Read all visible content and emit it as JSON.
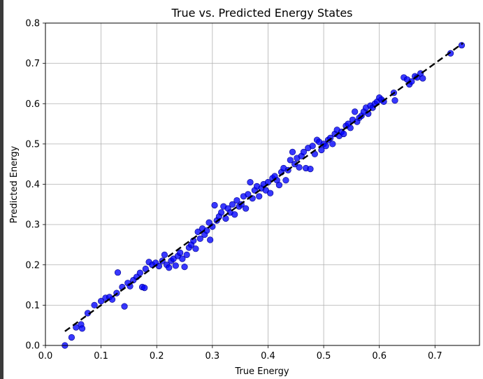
{
  "chart_data": {
    "type": "scatter",
    "title": "True vs. Predicted Energy States",
    "xlabel": "True Energy",
    "ylabel": "Predicted Energy",
    "xlim": [
      0.0,
      0.78
    ],
    "ylim": [
      0.0,
      0.8
    ],
    "x_ticks": [
      "0.0",
      "0.1",
      "0.2",
      "0.3",
      "0.4",
      "0.5",
      "0.6",
      "0.7"
    ],
    "y_ticks": [
      "0.0",
      "0.1",
      "0.2",
      "0.3",
      "0.4",
      "0.5",
      "0.6",
      "0.7",
      "0.8"
    ],
    "grid": true,
    "point_color": "#0000ff",
    "point_edge_color": "#00008b",
    "reference_line": {
      "style": "dashed",
      "color": "#000000",
      "from": [
        0.035,
        0.035
      ],
      "to": [
        0.75,
        0.75
      ]
    },
    "points": [
      [
        0.035,
        0.0
      ],
      [
        0.047,
        0.02
      ],
      [
        0.055,
        0.045
      ],
      [
        0.064,
        0.052
      ],
      [
        0.066,
        0.042
      ],
      [
        0.076,
        0.08
      ],
      [
        0.088,
        0.1
      ],
      [
        0.1,
        0.11
      ],
      [
        0.108,
        0.118
      ],
      [
        0.115,
        0.12
      ],
      [
        0.12,
        0.114
      ],
      [
        0.128,
        0.13
      ],
      [
        0.13,
        0.181
      ],
      [
        0.138,
        0.145
      ],
      [
        0.142,
        0.097
      ],
      [
        0.148,
        0.155
      ],
      [
        0.152,
        0.147
      ],
      [
        0.158,
        0.162
      ],
      [
        0.164,
        0.17
      ],
      [
        0.17,
        0.18
      ],
      [
        0.174,
        0.145
      ],
      [
        0.178,
        0.143
      ],
      [
        0.18,
        0.19
      ],
      [
        0.186,
        0.207
      ],
      [
        0.192,
        0.2
      ],
      [
        0.198,
        0.205
      ],
      [
        0.204,
        0.197
      ],
      [
        0.21,
        0.21
      ],
      [
        0.214,
        0.225
      ],
      [
        0.218,
        0.2
      ],
      [
        0.222,
        0.193
      ],
      [
        0.226,
        0.21
      ],
      [
        0.23,
        0.215
      ],
      [
        0.234,
        0.198
      ],
      [
        0.238,
        0.222
      ],
      [
        0.242,
        0.23
      ],
      [
        0.246,
        0.215
      ],
      [
        0.25,
        0.195
      ],
      [
        0.254,
        0.225
      ],
      [
        0.258,
        0.243
      ],
      [
        0.262,
        0.25
      ],
      [
        0.266,
        0.26
      ],
      [
        0.27,
        0.24
      ],
      [
        0.274,
        0.282
      ],
      [
        0.278,
        0.265
      ],
      [
        0.282,
        0.29
      ],
      [
        0.286,
        0.275
      ],
      [
        0.29,
        0.285
      ],
      [
        0.294,
        0.305
      ],
      [
        0.296,
        0.262
      ],
      [
        0.3,
        0.295
      ],
      [
        0.304,
        0.348
      ],
      [
        0.308,
        0.31
      ],
      [
        0.312,
        0.32
      ],
      [
        0.316,
        0.33
      ],
      [
        0.32,
        0.345
      ],
      [
        0.324,
        0.315
      ],
      [
        0.328,
        0.34
      ],
      [
        0.332,
        0.33
      ],
      [
        0.336,
        0.35
      ],
      [
        0.34,
        0.325
      ],
      [
        0.344,
        0.36
      ],
      [
        0.348,
        0.345
      ],
      [
        0.352,
        0.35
      ],
      [
        0.356,
        0.37
      ],
      [
        0.36,
        0.34
      ],
      [
        0.364,
        0.375
      ],
      [
        0.368,
        0.405
      ],
      [
        0.372,
        0.365
      ],
      [
        0.376,
        0.385
      ],
      [
        0.38,
        0.395
      ],
      [
        0.384,
        0.37
      ],
      [
        0.388,
        0.39
      ],
      [
        0.392,
        0.4
      ],
      [
        0.396,
        0.385
      ],
      [
        0.4,
        0.405
      ],
      [
        0.404,
        0.378
      ],
      [
        0.408,
        0.415
      ],
      [
        0.412,
        0.42
      ],
      [
        0.416,
        0.41
      ],
      [
        0.42,
        0.398
      ],
      [
        0.424,
        0.43
      ],
      [
        0.428,
        0.44
      ],
      [
        0.432,
        0.41
      ],
      [
        0.436,
        0.435
      ],
      [
        0.44,
        0.46
      ],
      [
        0.444,
        0.48
      ],
      [
        0.448,
        0.45
      ],
      [
        0.452,
        0.465
      ],
      [
        0.456,
        0.442
      ],
      [
        0.46,
        0.47
      ],
      [
        0.464,
        0.48
      ],
      [
        0.468,
        0.44
      ],
      [
        0.472,
        0.49
      ],
      [
        0.476,
        0.438
      ],
      [
        0.48,
        0.495
      ],
      [
        0.484,
        0.475
      ],
      [
        0.488,
        0.51
      ],
      [
        0.492,
        0.505
      ],
      [
        0.496,
        0.485
      ],
      [
        0.5,
        0.5
      ],
      [
        0.504,
        0.495
      ],
      [
        0.508,
        0.51
      ],
      [
        0.512,
        0.515
      ],
      [
        0.516,
        0.5
      ],
      [
        0.52,
        0.525
      ],
      [
        0.524,
        0.535
      ],
      [
        0.528,
        0.52
      ],
      [
        0.532,
        0.53
      ],
      [
        0.536,
        0.525
      ],
      [
        0.54,
        0.545
      ],
      [
        0.544,
        0.55
      ],
      [
        0.548,
        0.54
      ],
      [
        0.552,
        0.56
      ],
      [
        0.556,
        0.58
      ],
      [
        0.56,
        0.555
      ],
      [
        0.564,
        0.565
      ],
      [
        0.568,
        0.57
      ],
      [
        0.572,
        0.58
      ],
      [
        0.576,
        0.59
      ],
      [
        0.58,
        0.575
      ],
      [
        0.584,
        0.595
      ],
      [
        0.588,
        0.59
      ],
      [
        0.592,
        0.6
      ],
      [
        0.596,
        0.605
      ],
      [
        0.6,
        0.615
      ],
      [
        0.604,
        0.61
      ],
      [
        0.608,
        0.605
      ],
      [
        0.626,
        0.627
      ],
      [
        0.628,
        0.608
      ],
      [
        0.644,
        0.665
      ],
      [
        0.65,
        0.66
      ],
      [
        0.654,
        0.648
      ],
      [
        0.658,
        0.655
      ],
      [
        0.664,
        0.668
      ],
      [
        0.668,
        0.665
      ],
      [
        0.674,
        0.675
      ],
      [
        0.678,
        0.663
      ],
      [
        0.728,
        0.725
      ],
      [
        0.748,
        0.745
      ]
    ]
  }
}
